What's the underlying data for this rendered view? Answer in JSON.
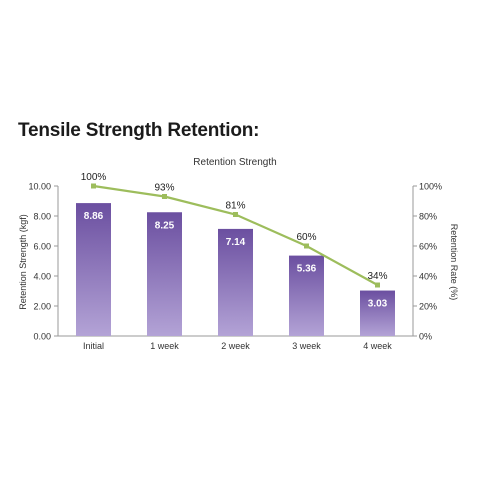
{
  "page": {
    "heading": "Tensile Strength Retention:"
  },
  "chart_data": {
    "type": "bar",
    "title": "Retention Strength",
    "categories": [
      "Initial",
      "1 week",
      "2 week",
      "3 week",
      "4 week"
    ],
    "series": [
      {
        "type": "bar",
        "axis": "left",
        "values": [
          8.86,
          8.25,
          7.14,
          5.36,
          3.03
        ],
        "labels": [
          "8.86",
          "8.25",
          "7.14",
          "5.36",
          "3.03"
        ]
      },
      {
        "type": "line",
        "axis": "right",
        "values": [
          100,
          93,
          81,
          60,
          34
        ],
        "labels": [
          "100%",
          "93%",
          "81%",
          "60%",
          "34%"
        ]
      }
    ],
    "ylabel": "Retention Strength (kgf)",
    "ylim": [
      0,
      10
    ],
    "yticks": [
      "0.00",
      "2.00",
      "4.00",
      "6.00",
      "8.00",
      "10.00"
    ],
    "y2label": "Retention Rate (%)",
    "y2lim": [
      0,
      100
    ],
    "y2ticks": [
      "0%",
      "20%",
      "40%",
      "60%",
      "80%",
      "100%"
    ],
    "grid": false,
    "legend": "none",
    "colors": {
      "bar_top": "#6b4fa0",
      "bar_bottom": "#b3a3d6",
      "line": "#9dbd5c",
      "axis": "#9a9a9a",
      "label": "#ffffff"
    }
  }
}
